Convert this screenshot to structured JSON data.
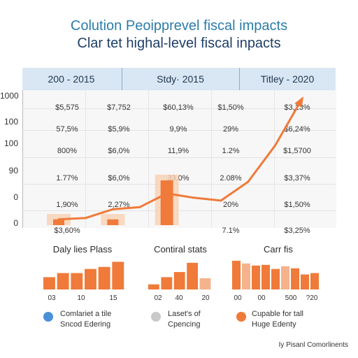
{
  "title_line1": "Colution Peoipprevel fiscal impacts",
  "title_line2": "Clar tet highal-level fiscal inpacts",
  "headers": [
    "200 - 2015",
    "Stdy· 2015",
    "Titley - 2020"
  ],
  "table": {
    "row_labels": [
      "1000",
      "100",
      "100",
      "90",
      "0",
      "0"
    ],
    "rows": [
      [
        "$5,575",
        "$7,752",
        "$60,13%",
        "$1,50%",
        "$3,13%"
      ],
      [
        "57,5%",
        "$5,9%",
        "9,9%",
        "29%",
        "$6,24%"
      ],
      [
        "800%",
        "$6,0%",
        "11,9%",
        "1.2%",
        "$1,5700"
      ],
      [
        "1.77%",
        "$6,0%",
        "33,0%",
        "2.08%",
        "$3,37%"
      ],
      [
        "1,90%",
        "2,27%",
        "",
        "20%",
        "$1,50%"
      ],
      [
        "$3,60%",
        "",
        "",
        "7.1%",
        "$3,25%"
      ]
    ]
  },
  "chart_data": [
    {
      "type": "line",
      "title": "",
      "x": [
        1,
        2,
        3,
        4,
        5,
        6,
        7,
        8,
        9,
        10
      ],
      "series": [
        {
          "values": [
            8,
            10,
            22,
            25,
            44,
            38,
            34,
            60,
            110,
            175
          ]
        }
      ],
      "bars": [
        {
          "x": 1,
          "value": 8
        },
        {
          "x": 3,
          "value": 8
        },
        {
          "x": 5,
          "value": 62
        }
      ],
      "ylim": [
        0,
        185
      ],
      "color": "#f07a3a"
    },
    {
      "type": "bar",
      "title": "Daly lies Plass",
      "tick_labels": [
        "03",
        "10",
        "15"
      ],
      "values": [
        12,
        16,
        16,
        20,
        22,
        27
      ],
      "color": "#f07a3a"
    },
    {
      "type": "bar",
      "title": "Contiral stats",
      "tick_labels": [
        "02",
        "40",
        "20"
      ],
      "values": [
        5,
        12,
        17,
        26,
        11
      ],
      "colors": [
        "#f07a3a",
        "#f07a3a",
        "#f07a3a",
        "#f07a3a",
        "#f5b38c"
      ],
      "color": "#f07a3a"
    },
    {
      "type": "bar",
      "title": "Carr fis",
      "tick_labels": [
        "00",
        "00",
        "500",
        "?20"
      ],
      "values": [
        42,
        38,
        35,
        36,
        30,
        34,
        31,
        22,
        24
      ],
      "colors": [
        "#f07a3a",
        "#f5b38c",
        "#f07a3a",
        "#f07a3a",
        "#f07a3a",
        "#f5b38c",
        "#f07a3a",
        "#f07a3a",
        "#f07a3a"
      ],
      "color": "#f07a3a"
    }
  ],
  "legend": [
    {
      "text": "Comlariet a tile\nSncod Edering",
      "color": "#4a90d9"
    },
    {
      "text": "Laset's of\nCpencing",
      "color": "#c9c9c9"
    },
    {
      "text": "Cupable for tall\nHuge Edenty",
      "color": "#f07a3a"
    }
  ],
  "footer": "Iy Pisanl Comorlinents"
}
